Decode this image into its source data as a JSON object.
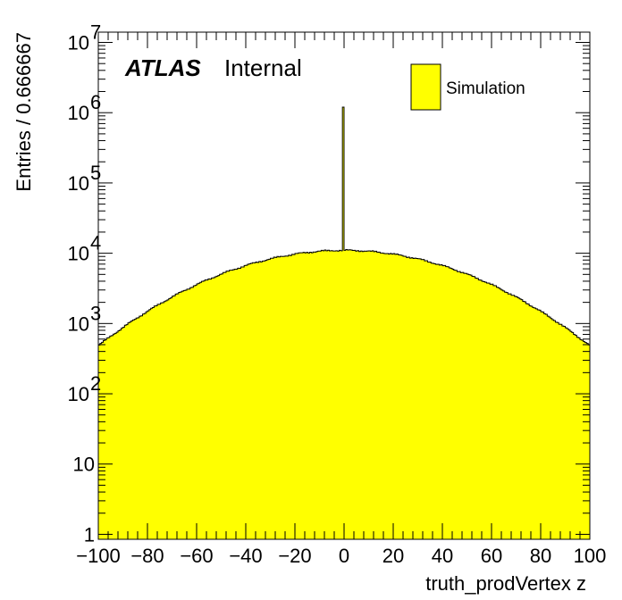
{
  "chart_data": {
    "type": "histogram",
    "xlabel": "truth_prodVertex z",
    "ylabel": "Entries / 0.666667",
    "xlim": [
      -100,
      100
    ],
    "ylim": [
      0.85,
      14000000
    ],
    "y_scale": "log",
    "bin_width": 0.666667,
    "x_ticks": [
      -100,
      -80,
      -60,
      -40,
      -20,
      0,
      20,
      40,
      60,
      80,
      100
    ],
    "x_tick_labels": [
      "−100",
      "−80",
      "−60",
      "−40",
      "−20",
      "0",
      "20",
      "40",
      "60",
      "80",
      "100"
    ],
    "y_ticks": [
      {
        "value": 1,
        "base": "1",
        "exp": ""
      },
      {
        "value": 10,
        "base": "10",
        "exp": ""
      },
      {
        "value": 100,
        "base": "10",
        "exp": "2"
      },
      {
        "value": 1000,
        "base": "10",
        "exp": "3"
      },
      {
        "value": 10000,
        "base": "10",
        "exp": "4"
      },
      {
        "value": 100000,
        "base": "10",
        "exp": "5"
      },
      {
        "value": 1000000,
        "base": "10",
        "exp": "6"
      },
      {
        "value": 10000000,
        "base": "10",
        "exp": "7"
      }
    ],
    "series": [
      {
        "name": "Simulation",
        "fill_color": "#ffff00",
        "line_color": "#000000",
        "profile": {
          "type": "gaussian",
          "peak": 11000,
          "mean": 0,
          "sigma": 40
        },
        "spike": {
          "x": 0,
          "value": 1200000
        }
      }
    ],
    "legend": {
      "position": "top-right",
      "entries": [
        "Simulation"
      ]
    },
    "annotation": {
      "bold_italic": "ATLAS",
      "normal": "Internal"
    }
  }
}
